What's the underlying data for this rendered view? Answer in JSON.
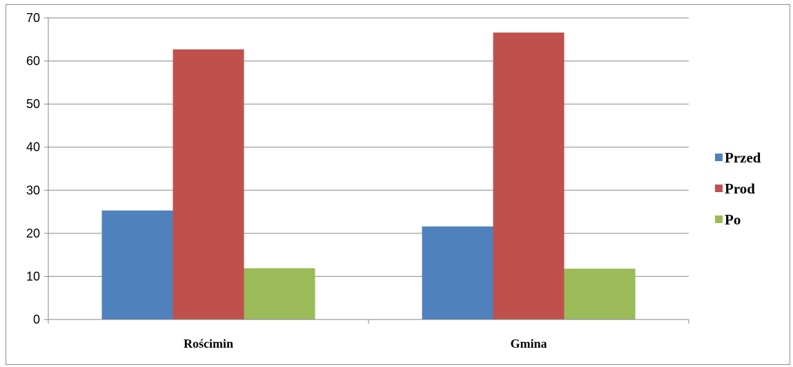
{
  "chart_data": {
    "type": "bar",
    "categories": [
      "Rościmin",
      "Gmina"
    ],
    "series": [
      {
        "name": "Przed",
        "color": "#4f81bd",
        "values": [
          25.3,
          21.6
        ]
      },
      {
        "name": "Prod",
        "color": "#c0504d",
        "values": [
          62.7,
          66.6
        ]
      },
      {
        "name": "Po",
        "color": "#9bbb59",
        "values": [
          11.9,
          11.8
        ]
      }
    ],
    "yticks": [
      "0",
      "10",
      "20",
      "30",
      "40",
      "50",
      "60",
      "70"
    ],
    "ylim": [
      0,
      70
    ],
    "grid": true,
    "legend_position": "right"
  }
}
